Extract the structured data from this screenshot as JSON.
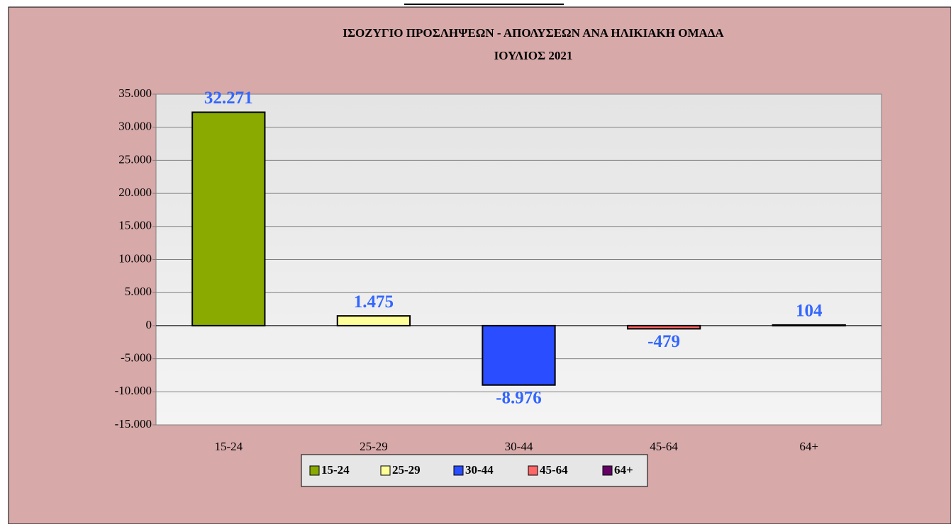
{
  "chart_data": {
    "type": "bar",
    "title": "ΙΣΟΖΥΓΙΟ  ΠΡΟΣΛΗΨΕΩΝ - ΑΠΟΛΥΣΕΩΝ ΑΝΑ ΗΛΙΚΙΑΚΗ ΟΜΑΔΑ",
    "subtitle": "ΙΟΥΛΙΟΣ  2021",
    "categories": [
      "15-24",
      "25-29",
      "30-44",
      "45-64",
      "64+"
    ],
    "values": [
      32271,
      1475,
      -8976,
      -479,
      104
    ],
    "value_labels": [
      "32.271",
      "1.475",
      "-8.976",
      "-479",
      "104"
    ],
    "colors": [
      "#8aaa00",
      "#ffff99",
      "#2a4dff",
      "#ff6666",
      "#660066"
    ],
    "ylim": [
      -15000,
      35000
    ],
    "yticks": [
      {
        "value": -15000,
        "label": "-15.000"
      },
      {
        "value": -10000,
        "label": "-10.000"
      },
      {
        "value": -5000,
        "label": "-5.000"
      },
      0,
      {
        "value": 5000,
        "label": "5.000"
      },
      {
        "value": 10000,
        "label": "10.000"
      },
      {
        "value": 15000,
        "label": "15.000"
      },
      {
        "value": 20000,
        "label": "20.000"
      },
      {
        "value": 25000,
        "label": "25.000"
      },
      {
        "value": 30000,
        "label": "30.000"
      },
      {
        "value": 35000,
        "label": "35.000"
      }
    ],
    "grid": true,
    "legend": "bottom"
  }
}
